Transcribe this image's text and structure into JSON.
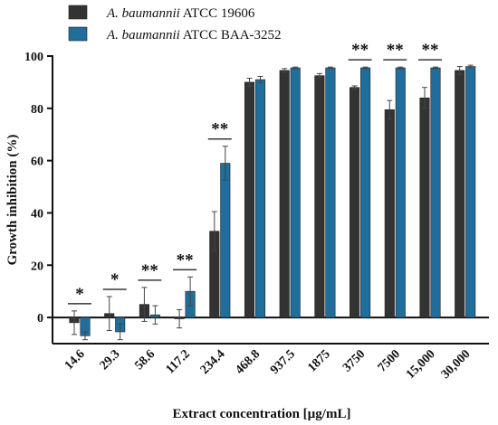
{
  "chart_data": {
    "type": "bar",
    "xlabel": "Extract concentration [µg/mL]",
    "ylabel": "Growth inhibition (%)",
    "ylim": [
      -10,
      100
    ],
    "yticks": [
      0,
      20,
      40,
      60,
      80,
      100
    ],
    "categories": [
      "14.6",
      "29.3",
      "58.6",
      "117.2",
      "234.4",
      "468.8",
      "937.5",
      "1875",
      "3750",
      "7500",
      "15,000",
      "30,000"
    ],
    "legend_position": "top-left",
    "series": [
      {
        "name_italic": "A. baumannii",
        "name_rest": " ATCC 19606",
        "color": "#333333",
        "values": [
          -2,
          1.5,
          5,
          -0.5,
          33,
          90,
          94.5,
          92.5,
          88,
          79.5,
          84,
          94.5
        ],
        "errors": [
          4.5,
          6.5,
          6.5,
          3.5,
          7.5,
          1.5,
          0.7,
          0.8,
          0.6,
          3.5,
          4,
          1.5
        ]
      },
      {
        "name_italic": "A. baumannii",
        "name_rest": " ATCC BAA-3252",
        "color": "#1f6e9c",
        "values": [
          -7,
          -5.5,
          1,
          10,
          59,
          91,
          95.5,
          95.5,
          95.5,
          95.5,
          95.5,
          96
        ],
        "errors": [
          1.5,
          3,
          3.5,
          5.5,
          6.5,
          1.2,
          0.3,
          0.3,
          0.3,
          0.3,
          0.3,
          0.5
        ]
      }
    ],
    "significance": [
      {
        "category": "14.6",
        "label": "*"
      },
      {
        "category": "29.3",
        "label": "*"
      },
      {
        "category": "58.6",
        "label": "**"
      },
      {
        "category": "117.2",
        "label": "**"
      },
      {
        "category": "234.4",
        "label": "**"
      },
      {
        "category": "3750",
        "label": "**"
      },
      {
        "category": "7500",
        "label": "**"
      },
      {
        "category": "15,000",
        "label": "**"
      }
    ]
  }
}
